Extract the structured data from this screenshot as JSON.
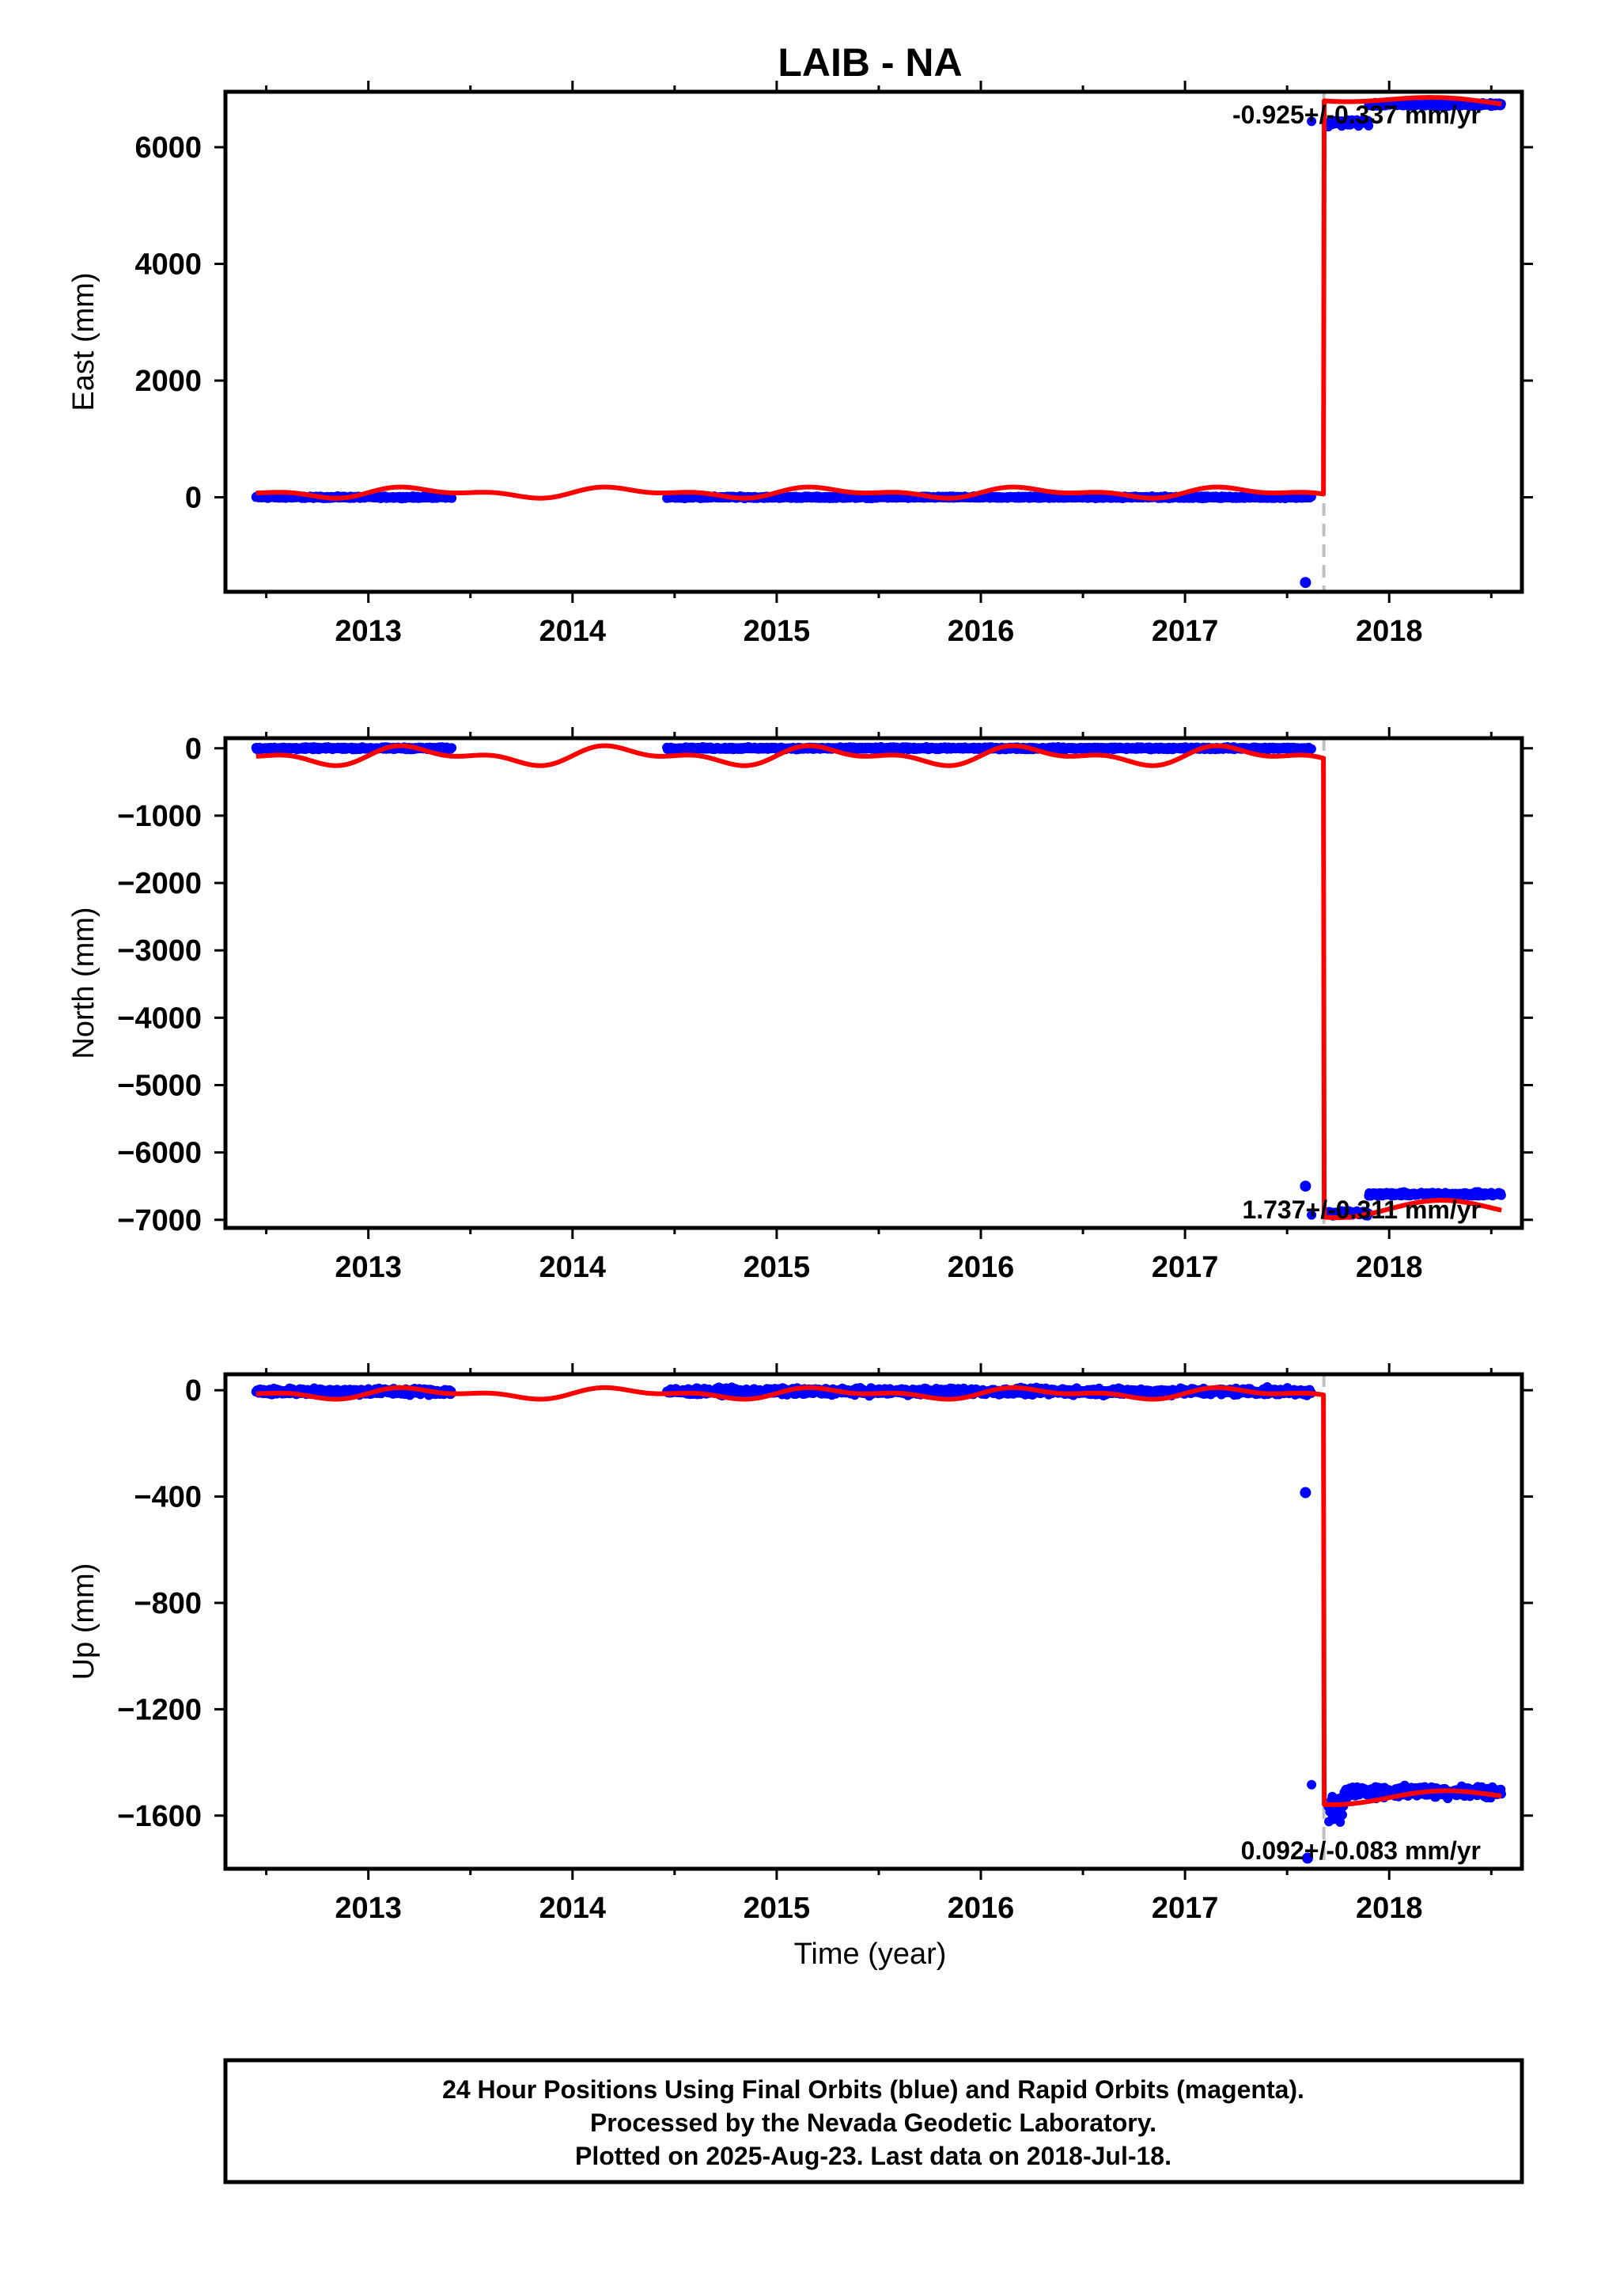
{
  "chart_data": {
    "type": "scatter",
    "title": "LAIB - NA",
    "xlabel": "Time (year)",
    "xlim": [
      2012.3,
      2018.65
    ],
    "x_ticks": [
      "2013",
      "2014",
      "2015",
      "2016",
      "2017",
      "2018"
    ],
    "offset_epoch": 2017.68,
    "data_ranges": [
      [
        2012.45,
        2013.41
      ],
      [
        2014.46,
        2017.62
      ],
      [
        2017.7,
        2018.55
      ]
    ],
    "colors": {
      "final_orbits": "#0000ff",
      "model_fit": "#ff0000",
      "offset_line": "#c0c0c0"
    },
    "panels": [
      {
        "name": "east",
        "ylabel": "East (mm)",
        "ylim": [
          -1620,
          6950
        ],
        "y_ticks": [
          "0",
          "2000",
          "4000",
          "6000"
        ],
        "y_tick_values": [
          0,
          2000,
          4000,
          6000
        ],
        "rate_label": "-0.925+/-0.337 mm/yr",
        "segments": [
          {
            "x": [
              2012.45,
              2017.62
            ],
            "level": 0,
            "spread": 25
          },
          {
            "x": [
              2017.62,
              2017.9
            ],
            "level": 6420,
            "spread": 80
          },
          {
            "x": [
              2017.9,
              2018.55
            ],
            "level": 6730,
            "spread": 40
          }
        ],
        "outliers": [
          {
            "x": 2017.59,
            "y": -1460
          }
        ],
        "model": {
          "before": {
            "level": 80,
            "seasonal_amp": 110
          },
          "after": {
            "start": 6850,
            "end": 6760,
            "seasonal_amp": 60
          }
        }
      },
      {
        "name": "north",
        "ylabel": "North (mm)",
        "ylim": [
          -7120,
          150
        ],
        "y_ticks": [
          "0",
          "−1000",
          "−2000",
          "−3000",
          "−4000",
          "−5000",
          "−6000",
          "−7000"
        ],
        "y_tick_values": [
          0,
          -1000,
          -2000,
          -3000,
          -4000,
          -5000,
          -6000,
          -7000
        ],
        "rate_label": "1.737+/-0.311 mm/yr",
        "segments": [
          {
            "x": [
              2012.45,
              2017.62
            ],
            "level": 0,
            "spread": 25
          },
          {
            "x": [
              2017.62,
              2017.9
            ],
            "level": -6900,
            "spread": 60
          },
          {
            "x": [
              2017.9,
              2018.55
            ],
            "level": -6620,
            "spread": 40
          }
        ],
        "outliers": [
          {
            "x": 2017.59,
            "y": -6500
          }
        ],
        "model": {
          "before": {
            "level": -110,
            "seasonal_amp": 170
          },
          "after": {
            "start": -6850,
            "end": -6820,
            "seasonal_amp": 120
          }
        }
      },
      {
        "name": "up",
        "ylabel": "Up (mm)",
        "ylim": [
          -1800,
          60
        ],
        "y_ticks": [
          "0",
          "−400",
          "−800",
          "−1200",
          "−1600"
        ],
        "y_tick_values": [
          0,
          -400,
          -800,
          -1200,
          -1600
        ],
        "rate_label": "0.092+/-0.083 mm/yr",
        "segments": [
          {
            "x": [
              2012.45,
              2017.62
            ],
            "level": -5,
            "spread": 18
          },
          {
            "x": [
              2017.62,
              2017.78
            ],
            "level": -1580,
            "spread": 100
          },
          {
            "x": [
              2017.78,
              2018.55
            ],
            "level": -1510,
            "spread": 30
          }
        ],
        "outliers": [
          {
            "x": 2017.59,
            "y": -385
          },
          {
            "x": 2017.6,
            "y": -1760
          }
        ],
        "model": {
          "before": {
            "level": -12,
            "seasonal_amp": 25
          },
          "after": {
            "start": -1540,
            "end": -1520,
            "seasonal_amp": 20
          }
        }
      }
    ]
  },
  "footer": {
    "line1": "24 Hour Positions Using Final Orbits (blue) and Rapid Orbits (magenta).",
    "line2": "Processed by the Nevada Geodetic Laboratory.",
    "line3": "Plotted on 2025-Aug-23. Last data on 2018-Jul-18."
  }
}
